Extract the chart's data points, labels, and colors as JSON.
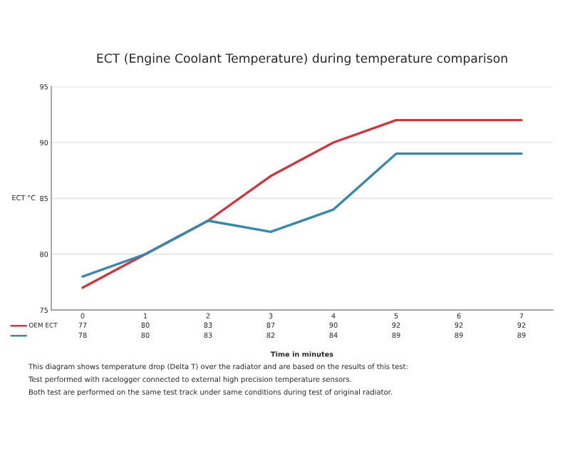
{
  "chart_data": {
    "type": "line",
    "title": "ECT (Engine Coolant Temperature) during temperature comparison",
    "xlabel": "Time in minutes",
    "ylabel": "ECT °C",
    "categories": [
      "0",
      "1",
      "2",
      "3",
      "4",
      "5",
      "6",
      "7"
    ],
    "series": [
      {
        "name": "OEM ECT",
        "color": "#c8383f",
        "values": [
          77,
          80,
          83,
          87,
          90,
          92,
          92,
          92
        ]
      },
      {
        "color": "#3a87a8",
        "values": [
          78,
          80,
          83,
          82,
          84,
          89,
          89,
          89
        ]
      }
    ],
    "ylim": [
      75,
      95
    ],
    "yticks": [
      75,
      80,
      85,
      90,
      95
    ],
    "grid": "y",
    "data_labels": true,
    "marker": "none",
    "line_style": "solid",
    "annotations": [
      "This diagram shows temperature drop (Delta T) over the radiator and are based on the results of this test:",
      "Test performed with racelogger connected to external high precision temperature sensors.",
      "Both test are performed on the same test track under same conditions during test of original radiator."
    ]
  }
}
